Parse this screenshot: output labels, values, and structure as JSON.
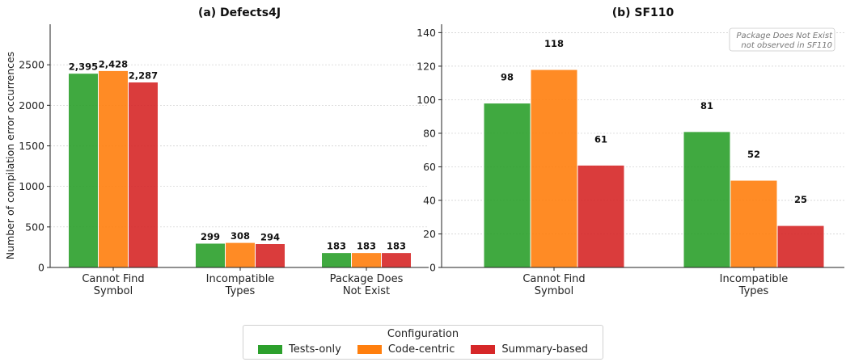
{
  "chart_data": [
    {
      "type": "bar",
      "title": "(a) Defects4J",
      "ylabel": "Number of compilation error occurrences",
      "xlabel": "",
      "ylim": [
        0,
        3000
      ],
      "yticks": [
        0,
        500,
        1000,
        1500,
        2000,
        2500
      ],
      "grid": "horizontal",
      "categories": [
        [
          "Cannot Find",
          "Symbol"
        ],
        [
          "Incompatible",
          "Types"
        ],
        [
          "Package Does",
          "Not Exist"
        ]
      ],
      "series": [
        {
          "name": "Tests-only",
          "values": [
            2395,
            299,
            183
          ],
          "labels": [
            "2,395",
            "299",
            "183"
          ]
        },
        {
          "name": "Code-centric",
          "values": [
            2428,
            308,
            183
          ],
          "labels": [
            "2,428",
            "308",
            "183"
          ]
        },
        {
          "name": "Summary-based",
          "values": [
            2287,
            294,
            183
          ],
          "labels": [
            "2,287",
            "294",
            "183"
          ]
        }
      ]
    },
    {
      "type": "bar",
      "title": "(b) SF110",
      "ylabel": "",
      "xlabel": "",
      "ylim": [
        0,
        145
      ],
      "yticks": [
        0,
        20,
        40,
        60,
        80,
        100,
        120,
        140
      ],
      "grid": "horizontal",
      "categories": [
        [
          "Cannot Find",
          "Symbol"
        ],
        [
          "Incompatible",
          "Types"
        ]
      ],
      "series": [
        {
          "name": "Tests-only",
          "values": [
            98,
            81
          ],
          "labels": [
            "98",
            "81"
          ]
        },
        {
          "name": "Code-centric",
          "values": [
            118,
            52
          ],
          "labels": [
            "118",
            "52"
          ]
        },
        {
          "name": "Summary-based",
          "values": [
            61,
            25
          ],
          "labels": [
            "61",
            "25"
          ]
        }
      ],
      "annotation": [
        "Package Does Not Exist",
        "not observed in SF110"
      ]
    }
  ],
  "legend": {
    "title": "Configuration",
    "placement": "bottom-center",
    "items": [
      {
        "label": "Tests-only",
        "color": "#2ca02c"
      },
      {
        "label": "Code-centric",
        "color": "#ff7f0e"
      },
      {
        "label": "Summary-based",
        "color": "#d62728"
      }
    ]
  }
}
